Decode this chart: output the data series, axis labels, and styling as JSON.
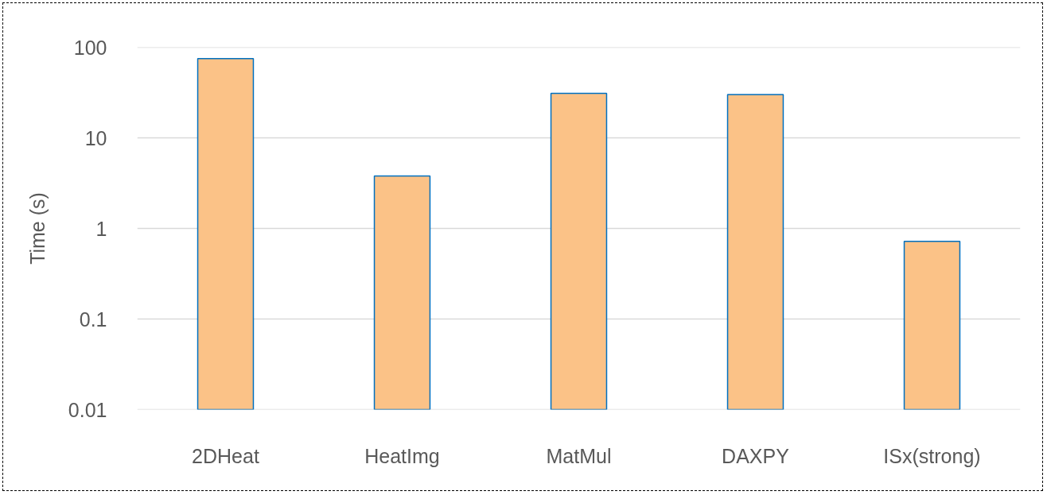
{
  "chart_data": {
    "type": "bar",
    "ylabel": "Time (s)",
    "categories": [
      "2DHeat",
      "HeatImg",
      "MatMul",
      "DAXPY",
      "ISx(strong)"
    ],
    "series": [
      {
        "color": "#fbc287",
        "values": [
          75,
          3.8,
          31,
          30,
          0.72
        ]
      }
    ],
    "log": "y",
    "ylim": [
      0.01,
      100
    ],
    "yticks": [
      0.01,
      0.1,
      1,
      10,
      100
    ],
    "grid": "y"
  }
}
